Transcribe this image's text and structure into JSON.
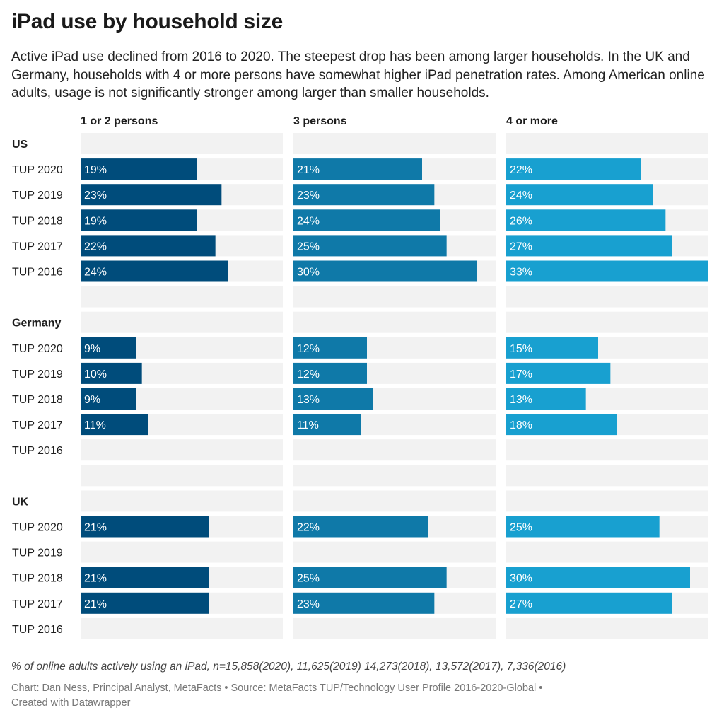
{
  "title": "iPad use by household size",
  "subtitle": "Active iPad use declined from 2016 to 2020. The steepest drop has been among larger households. In the UK and Germany, households with 4 or more persons have somewhat higher iPad penetration rates. Among American online adults, usage is not significantly stronger among larger than smaller households.",
  "notes": "% of online adults actively using an iPad, n=15,858(2020), 11,625(2019) 14,273(2018), 13,572(2017), 7,336(2016)",
  "byline_chart": "Chart: Dan Ness, Principal Analyst, MetaFacts",
  "byline_source": "Source: MetaFacts TUP/Technology User Profile 2016-2020-Global",
  "byline_created": "Created with Datawrapper",
  "byline_sep": "•",
  "colors": {
    "1 or 2 persons": "#004c7b",
    "3 persons": "#0f79a8",
    "4 or more": "#18a0d0",
    "row_background": "#f2f2f2"
  },
  "chart_data": {
    "type": "bar",
    "orientation": "horizontal",
    "layout": "small-multiples",
    "value_unit": "%",
    "xlim": [
      0,
      33
    ],
    "columns": [
      "1 or 2 persons",
      "3 persons",
      "4 or more"
    ],
    "groups": [
      {
        "name": "US",
        "rows": [
          {
            "label": "TUP 2020",
            "values": [
              19,
              21,
              22
            ]
          },
          {
            "label": "TUP 2019",
            "values": [
              23,
              23,
              24
            ]
          },
          {
            "label": "TUP 2018",
            "values": [
              19,
              24,
              26
            ]
          },
          {
            "label": "TUP 2017",
            "values": [
              22,
              25,
              27
            ]
          },
          {
            "label": "TUP 2016",
            "values": [
              24,
              30,
              33
            ]
          }
        ]
      },
      {
        "name": "Germany",
        "rows": [
          {
            "label": "TUP 2020",
            "values": [
              9,
              12,
              15
            ]
          },
          {
            "label": "TUP 2019",
            "values": [
              10,
              12,
              17
            ]
          },
          {
            "label": "TUP 2018",
            "values": [
              9,
              13,
              13
            ]
          },
          {
            "label": "TUP 2017",
            "values": [
              11,
              11,
              18
            ]
          },
          {
            "label": "TUP 2016",
            "values": [
              null,
              null,
              null
            ]
          }
        ]
      },
      {
        "name": "UK",
        "rows": [
          {
            "label": "TUP 2020",
            "values": [
              21,
              22,
              25
            ]
          },
          {
            "label": "TUP 2019",
            "values": [
              null,
              null,
              null
            ]
          },
          {
            "label": "TUP 2018",
            "values": [
              21,
              25,
              30
            ]
          },
          {
            "label": "TUP 2017",
            "values": [
              21,
              23,
              27
            ]
          },
          {
            "label": "TUP 2016",
            "values": [
              null,
              null,
              null
            ]
          }
        ]
      }
    ]
  }
}
